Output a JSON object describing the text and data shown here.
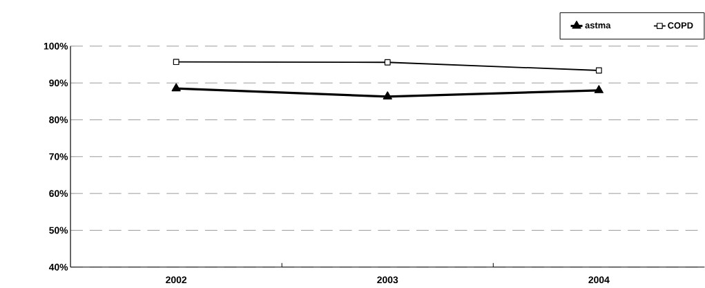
{
  "chart_data": {
    "type": "line",
    "categories": [
      "2002",
      "2003",
      "2004"
    ],
    "series": [
      {
        "name": "astma",
        "color": "#000000",
        "marker": "triangle",
        "values": [
          88.5,
          86.3,
          88.0
        ]
      },
      {
        "name": "COPD",
        "color": "#000000",
        "marker": "square",
        "values": [
          95.7,
          95.6,
          93.4
        ]
      }
    ],
    "ylim": [
      40,
      100
    ],
    "yticks": [
      {
        "value": 40,
        "label": "40%"
      },
      {
        "value": 50,
        "label": "50%"
      },
      {
        "value": 60,
        "label": "60%"
      },
      {
        "value": 70,
        "label": "70%"
      },
      {
        "value": 80,
        "label": "80%"
      },
      {
        "value": 90,
        "label": "90%"
      },
      {
        "value": 100,
        "label": "100%"
      }
    ],
    "grid": "y",
    "legend": "top right"
  }
}
